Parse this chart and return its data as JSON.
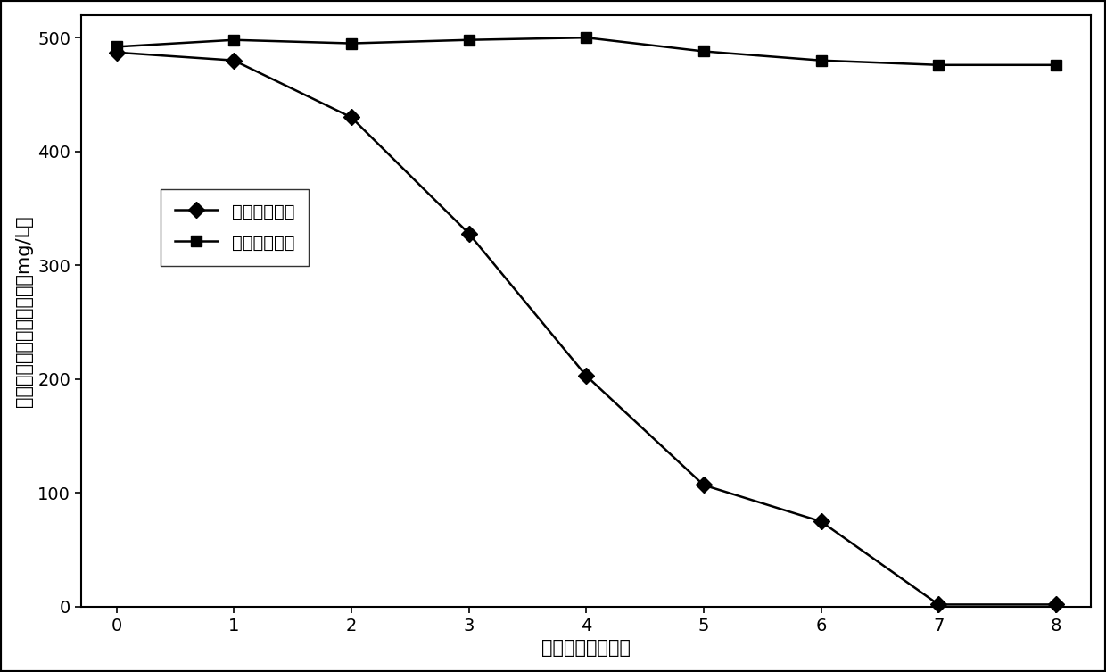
{
  "x": [
    0,
    1,
    2,
    3,
    4,
    5,
    6,
    7,
    8
  ],
  "evolved_chlorella": [
    487,
    480,
    430,
    328,
    203,
    107,
    75,
    2,
    2
  ],
  "unevolved_chlorella": [
    492,
    498,
    495,
    498,
    500,
    488,
    480,
    476,
    476
  ],
  "xlabel": "培养时间（天数）",
  "ylabel": "培养液中剩余的苯酚浓度（mg/L）",
  "legend_evolved": "进化后小球藻",
  "legend_unevolved": "未进化小球藻",
  "ylim": [
    0,
    520
  ],
  "xlim": [
    -0.3,
    8.3
  ],
  "yticks": [
    0,
    100,
    200,
    300,
    400,
    500
  ],
  "xticks": [
    0,
    1,
    2,
    3,
    4,
    5,
    6,
    7,
    8
  ],
  "line_color": "#000000",
  "background_color": "#ffffff",
  "marker_evolved": "D",
  "marker_unevolved": "s",
  "marker_size": 9,
  "line_width": 1.8,
  "label_fontsize": 15,
  "tick_fontsize": 14,
  "legend_fontsize": 14
}
